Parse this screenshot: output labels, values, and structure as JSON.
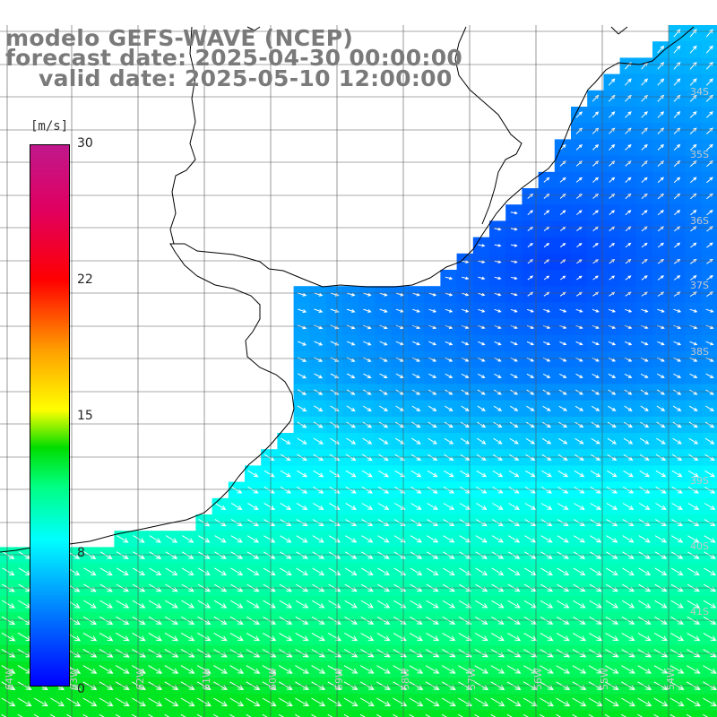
{
  "title": {
    "line1": "modelo GEFS-WAVE (NCEP)",
    "line2": "forecast date: 2025-04-30 00:00:00",
    "line3": "valid date: 2025-05-10 12:00:00"
  },
  "colorbar": {
    "units": "[m/s]",
    "ticks": [
      "30",
      "22",
      "15",
      "8",
      "0"
    ],
    "tick_values": [
      30,
      22,
      15,
      8,
      0
    ]
  },
  "lat_labels": [
    "34S",
    "35S",
    "36S",
    "37S",
    "38S",
    "39S",
    "40S",
    "41S"
  ],
  "lon_labels": [
    "64W",
    "63W",
    "62W",
    "61W",
    "60W",
    "59W",
    "58W",
    "57W",
    "56W",
    "55W",
    "54W"
  ]
}
